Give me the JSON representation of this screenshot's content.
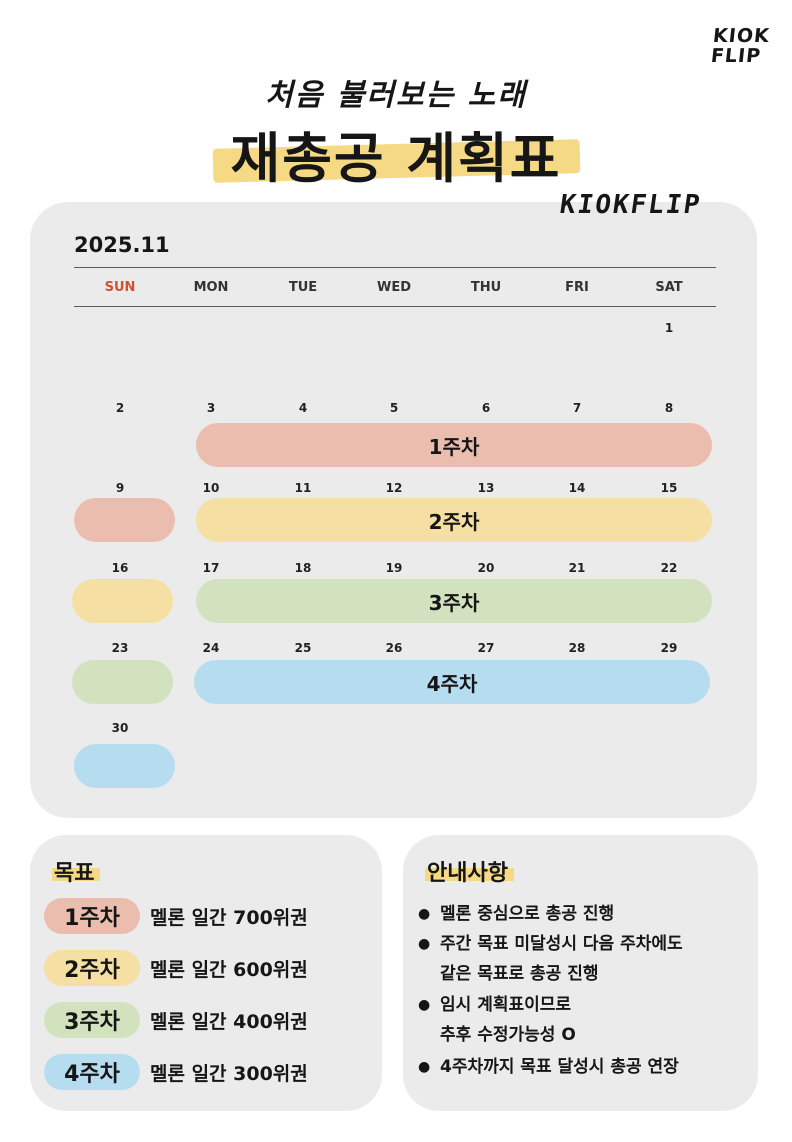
{
  "brand": {
    "logo_line1": "KIOK",
    "logo_line2": "FLIP",
    "logo_mid": "KIOKFLIP"
  },
  "header": {
    "subtitle": "처음 불러보는 노래",
    "title": "재총공 계획표"
  },
  "calendar": {
    "month": "2025.11",
    "weekdays": [
      "SUN",
      "MON",
      "TUE",
      "WED",
      "THU",
      "FRI",
      "SAT"
    ],
    "weeks": [
      [
        "",
        "",
        "",
        "",
        "",
        "",
        "1"
      ],
      [
        "2",
        "3",
        "4",
        "5",
        "6",
        "7",
        "8"
      ],
      [
        "9",
        "10",
        "11",
        "12",
        "13",
        "14",
        "15"
      ],
      [
        "16",
        "17",
        "18",
        "19",
        "20",
        "21",
        "22"
      ],
      [
        "23",
        "24",
        "25",
        "26",
        "27",
        "28",
        "29"
      ],
      [
        "30",
        "",
        "",
        "",
        "",
        "",
        ""
      ]
    ],
    "week_labels": [
      "1주차",
      "2주차",
      "3주차",
      "4주차"
    ]
  },
  "goals": {
    "heading": "목표",
    "items": [
      {
        "week": "1주차",
        "text": "멜론 일간 700위권"
      },
      {
        "week": "2주차",
        "text": "멜론 일간 600위권"
      },
      {
        "week": "3주차",
        "text": "멜론 일간 400위권"
      },
      {
        "week": "4주차",
        "text": "멜론 일간 300위권"
      }
    ]
  },
  "notice": {
    "heading": "안내사항",
    "items": [
      {
        "lines": [
          "멜론 중심으로 총공 진행"
        ]
      },
      {
        "lines": [
          "주간 목표 미달성시 다음 주차에도",
          "같은 목표로 총공 진행"
        ]
      },
      {
        "lines": [
          "임시 계획표이므로",
          "추후 수정가능성 O"
        ]
      },
      {
        "lines": [
          "4주차까지 목표 달성시 총공 연장"
        ]
      }
    ]
  },
  "colors": {
    "week1": "#ebbdaf",
    "week2": "#f5dfa2",
    "week3": "#d2e2bf",
    "week4": "#b6dcef",
    "sunday": "#d1502e",
    "highlight": "#f6d985",
    "panel": "#ebebeb"
  }
}
